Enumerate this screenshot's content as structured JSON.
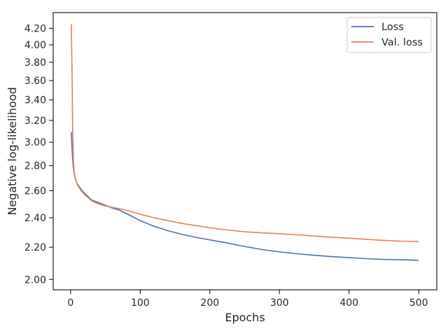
{
  "chart_data": {
    "type": "line",
    "title": "",
    "xlabel": "Epochs",
    "ylabel": "Negative log-likelihood",
    "y_scale": "log",
    "xlim": [
      -25,
      526
    ],
    "ylim": [
      1.94,
      4.4
    ],
    "x_ticks": [
      0,
      100,
      200,
      300,
      400,
      500
    ],
    "y_ticks": [
      2.0,
      2.2,
      2.4,
      2.6,
      2.8,
      3.0,
      3.2,
      3.4,
      3.6,
      3.8,
      4.0,
      4.2
    ],
    "x_tick_labels": [
      "0",
      "100",
      "200",
      "300",
      "400",
      "500"
    ],
    "y_tick_labels": [
      "2.00",
      "2.20",
      "2.40",
      "2.60",
      "2.80",
      "3.00",
      "3.20",
      "3.40",
      "3.60",
      "3.80",
      "4.00",
      "4.20"
    ],
    "grid": false,
    "legend_position": "top-right",
    "x": [
      1,
      2,
      3,
      4,
      5,
      6,
      8,
      10,
      15,
      20,
      30,
      40,
      50,
      60,
      70,
      80,
      90,
      100,
      120,
      140,
      160,
      180,
      200,
      225,
      250,
      275,
      300,
      325,
      350,
      375,
      400,
      425,
      450,
      475,
      500
    ],
    "series": [
      {
        "name": "Loss",
        "color": "#4c72b0",
        "values": [
          3.09,
          2.95,
          2.85,
          2.78,
          2.74,
          2.71,
          2.67,
          2.65,
          2.61,
          2.58,
          2.53,
          2.51,
          2.49,
          2.47,
          2.455,
          2.43,
          2.405,
          2.38,
          2.34,
          2.31,
          2.285,
          2.265,
          2.248,
          2.228,
          2.205,
          2.185,
          2.17,
          2.158,
          2.148,
          2.14,
          2.133,
          2.127,
          2.122,
          2.12,
          2.117
        ]
      },
      {
        "name": "Val. loss",
        "color": "#dd8452",
        "values": [
          4.25,
          3.7,
          3.1,
          2.85,
          2.76,
          2.71,
          2.67,
          2.645,
          2.6,
          2.57,
          2.525,
          2.5,
          2.485,
          2.475,
          2.465,
          2.455,
          2.44,
          2.425,
          2.4,
          2.38,
          2.36,
          2.345,
          2.33,
          2.315,
          2.303,
          2.295,
          2.29,
          2.282,
          2.274,
          2.266,
          2.26,
          2.252,
          2.245,
          2.24,
          2.237
        ]
      }
    ]
  }
}
